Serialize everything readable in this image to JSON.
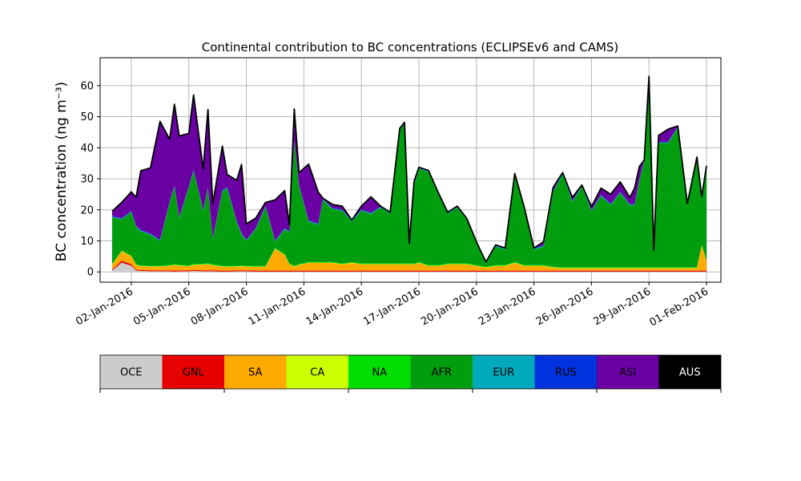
{
  "chart_data": {
    "type": "area",
    "stacked": true,
    "title": "Continental contribution to BC concentrations (ECLIPSEv6 and CAMS)",
    "ylabel": "BC concentration (ng m⁻³)",
    "ylim": [
      -3.3,
      69
    ],
    "xlim": [
      "2015-12-31T09:00",
      "2016-02-01T18:00"
    ],
    "yticks": [
      0,
      10,
      20,
      30,
      40,
      50,
      60
    ],
    "xticks": [
      "02-Jan-2016",
      "05-Jan-2016",
      "08-Jan-2016",
      "11-Jan-2016",
      "14-Jan-2016",
      "17-Jan-2016",
      "20-Jan-2016",
      "23-Jan-2016",
      "26-Jan-2016",
      "29-Jan-2016",
      "01-Feb-2016"
    ],
    "grid": true,
    "x": [
      "2016-01-01T00:00",
      "2016-01-01T12:00",
      "2016-01-02T00:00",
      "2016-01-02T06:00",
      "2016-01-02T12:00",
      "2016-01-03T00:00",
      "2016-01-03T12:00",
      "2016-01-04T00:00",
      "2016-01-04T06:00",
      "2016-01-04T12:00",
      "2016-01-05T00:00",
      "2016-01-05T06:00",
      "2016-01-05T18:00",
      "2016-01-06T00:00",
      "2016-01-06T06:00",
      "2016-01-06T18:00",
      "2016-01-07T00:00",
      "2016-01-07T12:00",
      "2016-01-07T18:00",
      "2016-01-08T00:00",
      "2016-01-08T12:00",
      "2016-01-09T00:00",
      "2016-01-09T12:00",
      "2016-01-10T00:00",
      "2016-01-10T06:00",
      "2016-01-10T12:00",
      "2016-01-10T18:00",
      "2016-01-11T06:00",
      "2016-01-11T18:00",
      "2016-01-12T00:00",
      "2016-01-12T12:00",
      "2016-01-13T00:00",
      "2016-01-13T12:00",
      "2016-01-14T00:00",
      "2016-01-14T12:00",
      "2016-01-15T00:00",
      "2016-01-15T12:00",
      "2016-01-16T00:00",
      "2016-01-16T06:00",
      "2016-01-16T12:00",
      "2016-01-16T18:00",
      "2016-01-17T00:00",
      "2016-01-17T12:00",
      "2016-01-18T00:00",
      "2016-01-18T12:00",
      "2016-01-19T00:00",
      "2016-01-19T12:00",
      "2016-01-20T00:00",
      "2016-01-20T06:00",
      "2016-01-20T12:00",
      "2016-01-21T00:00",
      "2016-01-21T12:00",
      "2016-01-22T00:00",
      "2016-01-22T12:00",
      "2016-01-23T00:00",
      "2016-01-23T12:00",
      "2016-01-24T00:00",
      "2016-01-24T12:00",
      "2016-01-25T00:00",
      "2016-01-25T12:00",
      "2016-01-26T00:00",
      "2016-01-26T12:00",
      "2016-01-27T00:00",
      "2016-01-27T12:00",
      "2016-01-28T00:00",
      "2016-01-28T06:00",
      "2016-01-28T12:00",
      "2016-01-28T18:00",
      "2016-01-29T00:00",
      "2016-01-29T06:00",
      "2016-01-29T12:00",
      "2016-01-30T00:00",
      "2016-01-30T12:00",
      "2016-01-31T00:00",
      "2016-01-31T12:00",
      "2016-01-31T18:00",
      "2016-02-01T00:00"
    ],
    "series": [
      {
        "name": "OCE",
        "color": "#cccccc",
        "values": [
          0.5,
          3,
          2,
          0.4,
          0.3,
          0.2,
          0.2,
          0.2,
          0.1,
          0.2,
          0.2,
          0.3,
          0.2,
          0.2,
          0.2,
          0.1,
          0.1,
          0.2,
          0.2,
          0.2,
          0.1,
          0.1,
          0.1,
          0.1,
          0.1,
          0.1,
          0.1,
          0.1,
          0.1,
          0.1,
          0.1,
          0.1,
          0.1,
          0.1,
          0.1,
          0.1,
          0.1,
          0.1,
          0.1,
          0.1,
          0.1,
          0.1,
          0.1,
          0.1,
          0.1,
          0.1,
          0.1,
          0.1,
          0.1,
          0.1,
          0.1,
          0.1,
          0.1,
          0.1,
          0.1,
          0.1,
          0.1,
          0.1,
          0.1,
          0.1,
          0.1,
          0.1,
          0.1,
          0.1,
          0.1,
          0.1,
          0.1,
          0.1,
          0.1,
          0.1,
          0.1,
          0.1,
          0.1,
          0.1,
          0.1,
          0.1,
          0.1
        ]
      },
      {
        "name": "GNL",
        "color": "#e60000",
        "values": [
          0.3,
          0.6,
          0.5,
          0.3,
          0.3,
          0.3,
          0.3,
          0.3,
          0.3,
          0.3,
          0.3,
          0.3,
          0.3,
          0.3,
          0.3,
          0.3,
          0.3,
          0.3,
          0.3,
          0.3,
          0.3,
          0.3,
          0.3,
          0.3,
          0.3,
          0.3,
          0.3,
          0.3,
          0.3,
          0.3,
          0.3,
          0.3,
          0.3,
          0.3,
          0.3,
          0.3,
          0.3,
          0.3,
          0.3,
          0.3,
          0.3,
          0.3,
          0.3,
          0.3,
          0.3,
          0.3,
          0.3,
          0.3,
          0.3,
          0.3,
          0.3,
          0.3,
          0.3,
          0.3,
          0.3,
          0.3,
          0.3,
          0.3,
          0.3,
          0.3,
          0.3,
          0.3,
          0.3,
          0.3,
          0.3,
          0.3,
          0.3,
          0.3,
          0.3,
          0.3,
          0.3,
          0.3,
          0.3,
          0.3,
          0.3,
          0.3,
          0.3
        ]
      },
      {
        "name": "SA",
        "color": "#ffaa00",
        "values": [
          1.5,
          3,
          2.5,
          1.5,
          1.2,
          1.2,
          1.2,
          1.4,
          1.8,
          1.5,
          1.3,
          1.6,
          1.8,
          2,
          1.6,
          1.3,
          1.2,
          1.2,
          1.3,
          1.2,
          1.2,
          1.2,
          7,
          5,
          2,
          1.3,
          1.8,
          2.5,
          2.5,
          2.5,
          2.5,
          2,
          2.5,
          2,
          2,
          2,
          2,
          2,
          2,
          2,
          2,
          2.5,
          1.5,
          1.5,
          2,
          2,
          2,
          1.5,
          1.2,
          1,
          1.5,
          1.5,
          2.5,
          1.5,
          1.5,
          1.5,
          1,
          0.8,
          0.8,
          0.8,
          0.8,
          0.8,
          0.8,
          0.8,
          0.8,
          0.8,
          0.8,
          0.8,
          0.8,
          0.8,
          0.8,
          0.8,
          0.8,
          0.8,
          0.8,
          8,
          3
        ]
      },
      {
        "name": "CA",
        "color": "#ccff00",
        "values": [
          0.1,
          0.1,
          0.1,
          0.1,
          0.1,
          0.1,
          0.1,
          0.1,
          0.1,
          0.1,
          0.1,
          0.1,
          0.1,
          0.1,
          0.1,
          0.1,
          0.1,
          0.1,
          0.1,
          0.1,
          0.1,
          0.1,
          0.1,
          0.1,
          0.1,
          0.1,
          0.1,
          0.1,
          0.1,
          0.1,
          0.1,
          0.1,
          0.1,
          0.1,
          0.1,
          0.1,
          0.1,
          0.1,
          0.1,
          0.1,
          0.1,
          0.1,
          0.1,
          0.1,
          0.1,
          0.1,
          0.1,
          0.1,
          0.1,
          0.1,
          0.1,
          0.1,
          0.1,
          0.1,
          0.1,
          0.1,
          0.1,
          0.1,
          0.1,
          0.1,
          0.1,
          0.1,
          0.1,
          0.1,
          0.1,
          0.1,
          0.1,
          0.1,
          0.1,
          0.1,
          0.1,
          0.1,
          0.1,
          0.1,
          0.1,
          0.1,
          0.1
        ]
      },
      {
        "name": "NA",
        "color": "#00dd00",
        "values": [
          0.2,
          0.2,
          0.2,
          0.2,
          0.2,
          0.2,
          0.2,
          0.2,
          0.2,
          0.2,
          0.2,
          0.2,
          0.2,
          0.2,
          0.2,
          0.2,
          0.2,
          0.2,
          0.2,
          0.2,
          0.2,
          0.2,
          0.2,
          0.2,
          0.2,
          0.2,
          0.2,
          0.2,
          0.2,
          0.2,
          0.2,
          0.2,
          0.2,
          0.2,
          0.2,
          0.2,
          0.2,
          0.2,
          0.2,
          0.2,
          0.2,
          0.2,
          0.2,
          0.2,
          0.2,
          0.2,
          0.2,
          0.2,
          0.2,
          0.2,
          0.2,
          0.2,
          0.2,
          0.2,
          0.2,
          0.2,
          0.2,
          0.2,
          0.2,
          0.2,
          0.2,
          0.2,
          0.2,
          0.2,
          0.2,
          0.2,
          0.2,
          0.2,
          0.2,
          0.2,
          0.2,
          0.2,
          0.2,
          0.2,
          0.2,
          0.2,
          0.2
        ]
      },
      {
        "name": "AFR",
        "color": "#009e0f",
        "values": [
          15,
          10,
          14,
          12,
          11,
          10,
          8,
          20,
          25,
          15,
          25,
          30,
          17,
          24,
          8,
          24,
          25,
          14,
          10,
          8,
          12,
          19,
          2,
          8,
          10,
          40,
          25,
          13,
          12,
          20,
          17,
          17,
          13,
          17,
          16,
          18,
          16,
          43,
          45,
          6,
          25,
          30,
          30,
          23,
          16,
          18,
          14,
          7,
          4,
          1,
          6,
          5,
          28,
          18,
          5,
          6,
          24,
          30,
          21,
          26,
          18,
          23,
          20,
          24,
          20,
          20,
          28,
          34,
          60,
          5,
          40,
          40,
          45,
          20,
          35,
          15,
          30
        ]
      },
      {
        "name": "EUR",
        "color": "#00aabb",
        "values": [
          0.2,
          0.2,
          0.2,
          0.2,
          0.2,
          0.2,
          0.2,
          0.2,
          0.2,
          0.2,
          0.2,
          0.2,
          0.2,
          0.2,
          0.2,
          0.2,
          0.2,
          0.2,
          0.2,
          0.2,
          0.2,
          0.2,
          0.2,
          0.2,
          0.2,
          0.2,
          0.2,
          0.2,
          0.2,
          0.2,
          0.2,
          0.2,
          0.2,
          0.2,
          0.2,
          0.2,
          0.2,
          0.2,
          0.2,
          0.2,
          0.2,
          0.2,
          0.2,
          0.2,
          0.2,
          0.2,
          0.2,
          0.2,
          0.2,
          0.2,
          0.2,
          0.2,
          0.2,
          0.2,
          0.2,
          0.2,
          0.2,
          0.2,
          0.2,
          0.2,
          0.2,
          0.2,
          0.2,
          0.2,
          0.2,
          0.2,
          0.2,
          0.2,
          0.2,
          0.2,
          0.2,
          0.2,
          0.2,
          0.2,
          0.2,
          0.2,
          0.2
        ]
      },
      {
        "name": "RUS",
        "color": "#0033dd",
        "values": [
          0.2,
          0.2,
          0.2,
          0.2,
          0.2,
          0.2,
          0.2,
          0.2,
          0.2,
          0.2,
          0.2,
          0.2,
          0.2,
          0.2,
          0.2,
          0.2,
          0.2,
          0.2,
          0.2,
          0.2,
          0.2,
          0.2,
          0.2,
          0.2,
          0.2,
          0.2,
          0.2,
          0.2,
          0.2,
          0.2,
          0.2,
          0.2,
          0.2,
          0.2,
          0.2,
          0.2,
          0.2,
          0.2,
          0.2,
          0.2,
          0.2,
          0.2,
          0.2,
          0.2,
          0.2,
          0.2,
          0.2,
          0.2,
          0.2,
          0.2,
          0.2,
          0.2,
          0.2,
          0.2,
          0.2,
          0.2,
          0.2,
          0.2,
          0.2,
          0.2,
          0.2,
          0.2,
          0.2,
          0.2,
          0.2,
          0.2,
          0.2,
          0.2,
          0.2,
          0.2,
          0.2,
          0.2,
          0.2,
          0.2,
          0.2,
          0.2,
          0.2
        ]
      },
      {
        "name": "ASI",
        "color": "#6a00a3",
        "values": [
          1.4,
          5,
          6,
          9,
          19,
          21,
          38,
          20,
          26,
          26,
          17,
          24,
          13,
          25,
          11,
          14,
          4,
          13,
          22,
          5,
          3,
          1,
          13,
          12,
          2,
          10,
          4,
          18,
          10,
          0,
          1,
          1,
          0,
          1,
          5,
          0,
          0,
          0,
          0,
          0,
          1,
          0,
          0,
          0,
          0,
          0,
          0,
          0,
          0,
          0,
          0,
          0,
          0,
          0,
          0,
          1,
          1,
          0,
          1,
          0,
          1,
          2,
          3,
          3,
          2,
          5,
          4,
          0,
          1,
          0,
          2,
          4,
          0,
          0,
          0,
          0,
          0
        ]
      },
      {
        "name": "AUS",
        "color": "#000000",
        "values": [
          0.1,
          0.1,
          0.1,
          0.1,
          0.1,
          0.1,
          0.1,
          0.1,
          0.1,
          0.1,
          0.1,
          0.1,
          0.1,
          0.1,
          0.1,
          0.1,
          0.1,
          0.1,
          0.1,
          0.1,
          0.1,
          0.1,
          0.1,
          0.1,
          0.1,
          0.1,
          0.1,
          0.1,
          0.1,
          0.1,
          0.1,
          0.1,
          0.1,
          0.1,
          0.1,
          0.1,
          0.1,
          0.1,
          0.1,
          0.1,
          0.1,
          0.1,
          0.1,
          0.1,
          0.1,
          0.1,
          0.1,
          0.1,
          0.1,
          0.1,
          0.1,
          0.1,
          0.1,
          0.1,
          0.1,
          0.1,
          0.1,
          0.1,
          0.1,
          0.1,
          0.1,
          0.1,
          0.1,
          0.1,
          0.1,
          0.1,
          0.1,
          0.1,
          0.1,
          0.1,
          0.1,
          0.1,
          0.1,
          0.1,
          0.1,
          0.1,
          0.1
        ]
      }
    ],
    "legend": {
      "placement": "bottom-colorbar",
      "entries": [
        {
          "label": "OCE",
          "color": "#cccccc",
          "text_color": "#000000"
        },
        {
          "label": "GNL",
          "color": "#e60000",
          "text_color": "#000000"
        },
        {
          "label": "SA",
          "color": "#ffaa00",
          "text_color": "#000000"
        },
        {
          "label": "CA",
          "color": "#ccff00",
          "text_color": "#000000"
        },
        {
          "label": "NA",
          "color": "#00dd00",
          "text_color": "#000000"
        },
        {
          "label": "AFR",
          "color": "#009e0f",
          "text_color": "#000000"
        },
        {
          "label": "EUR",
          "color": "#00aabb",
          "text_color": "#000000"
        },
        {
          "label": "RUS",
          "color": "#0033dd",
          "text_color": "#000000"
        },
        {
          "label": "ASI",
          "color": "#6a00a3",
          "text_color": "#000000"
        },
        {
          "label": "AUS",
          "color": "#000000",
          "text_color": "#ffffff"
        }
      ]
    },
    "total_line_color": "#000000",
    "grid_color": "#b0b0b0"
  }
}
